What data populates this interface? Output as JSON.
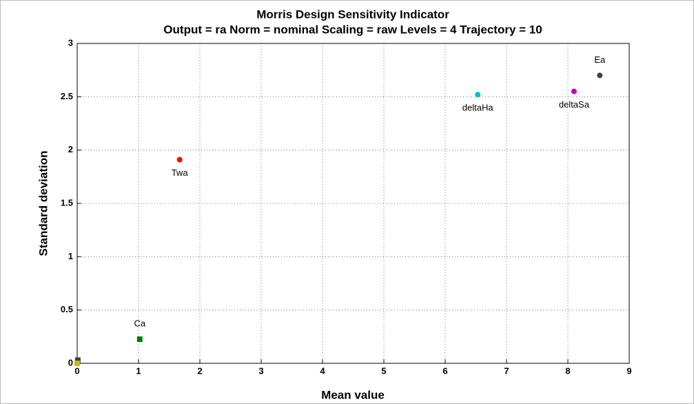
{
  "chart_data": {
    "type": "scatter",
    "title": "Morris Design Sensitivity Indicator",
    "subtitle": "Output = ra  Norm = nominal  Scaling = raw  Levels = 4  Trajectory = 10",
    "x_label": "Mean value",
    "y_label": "Standard deviation",
    "xlim": [
      0,
      9
    ],
    "xticks": [
      0,
      1,
      2,
      3,
      4,
      5,
      6,
      7,
      8,
      9
    ],
    "ylim": [
      0,
      3
    ],
    "yticks": [
      0,
      0.5,
      1,
      1.5,
      2,
      2.5,
      3
    ],
    "grid": true,
    "series": [
      {
        "name": "Twa",
        "color": "#ff0000",
        "marker": "circle",
        "label_position": "below",
        "x": [
          1.67
        ],
        "values": [
          1.91
        ]
      },
      {
        "name": "deltaHa",
        "color": "#00bfbf",
        "marker": "circle",
        "label_position": "below",
        "x": [
          6.53
        ],
        "values": [
          2.52
        ]
      },
      {
        "name": "deltaSa",
        "color": "#bf00bf",
        "marker": "circle",
        "label_position": "below",
        "x": [
          8.1
        ],
        "values": [
          2.55
        ]
      },
      {
        "name": "Ea",
        "color": "#404040",
        "marker": "circle",
        "label_position": "above",
        "x": [
          8.52
        ],
        "values": [
          2.7
        ]
      },
      {
        "name": "Ca",
        "color": "#008000",
        "marker": "square",
        "label_position": "above",
        "x": [
          1.02
        ],
        "values": [
          0.226
        ]
      },
      {
        "color": "#404040",
        "marker": "square",
        "x": [
          0.01
        ],
        "values": [
          0.03
        ]
      },
      {
        "color": "#bfbf00",
        "marker": "square",
        "x": [
          0.0
        ],
        "values": [
          0.0
        ]
      }
    ]
  }
}
